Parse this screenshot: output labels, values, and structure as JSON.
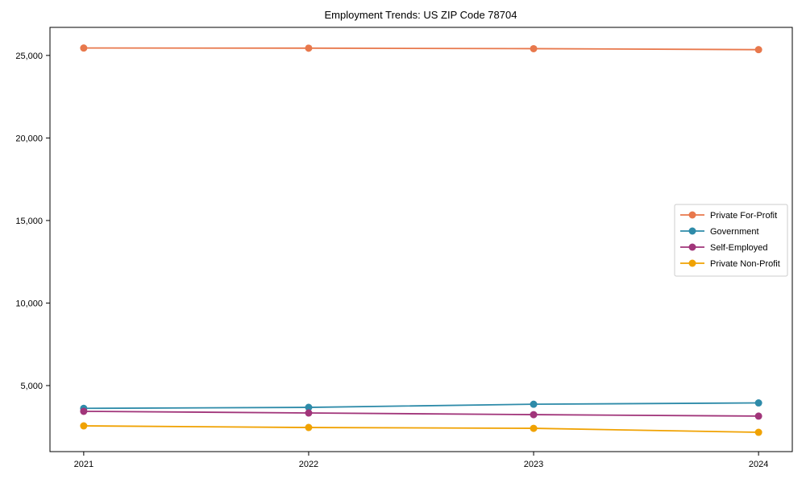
{
  "chart_data": {
    "type": "line",
    "title": "Employment Trends: US ZIP Code 78704",
    "categories": [
      "2021",
      "2022",
      "2023",
      "2024"
    ],
    "series": [
      {
        "name": "Private For-Profit",
        "color": "#E8784C",
        "values": [
          25450,
          25440,
          25410,
          25350
        ]
      },
      {
        "name": "Government",
        "color": "#2E8BA9",
        "values": [
          3620,
          3680,
          3870,
          3950
        ]
      },
      {
        "name": "Self-Employed",
        "color": "#A1357A",
        "values": [
          3440,
          3340,
          3240,
          3150
        ]
      },
      {
        "name": "Private Non-Profit",
        "color": "#F0A202",
        "values": [
          2560,
          2460,
          2410,
          2170
        ]
      }
    ],
    "xlabel": "",
    "ylabel": "",
    "ylim": [
      1000,
      26700
    ],
    "yticks": [
      5000,
      10000,
      15000,
      20000,
      25000
    ],
    "ytick_labels": [
      "5,000",
      "10,000",
      "15,000",
      "20,000",
      "25,000"
    ],
    "xtick_labels": [
      "2021",
      "2022",
      "2023",
      "2024"
    ],
    "grid": false,
    "legend_position": "center-right",
    "marker": "circle",
    "axis_color": "#000000",
    "frame_color": "#000000",
    "legend_border_color": "#cccccc",
    "background_color": "#ffffff"
  }
}
